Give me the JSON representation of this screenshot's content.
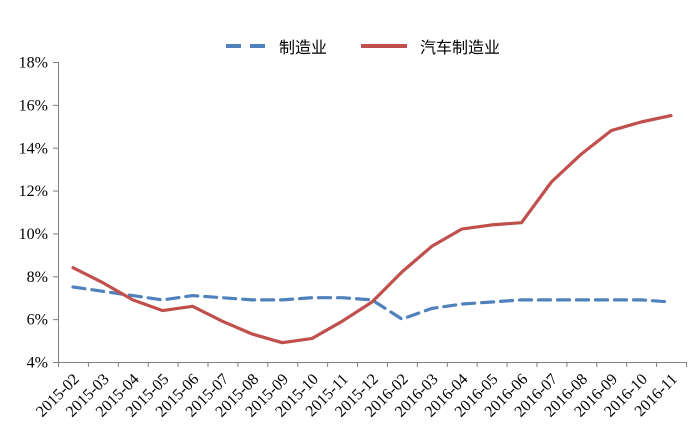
{
  "chart_data": {
    "type": "line",
    "title": "",
    "xlabel": "",
    "ylabel": "",
    "categories": [
      "2015-02",
      "2015-03",
      "2015-04",
      "2015-05",
      "2015-06",
      "2015-07",
      "2015-08",
      "2015-09",
      "2015-10",
      "2015-11",
      "2015-12",
      "2016-02",
      "2016-03",
      "2016-04",
      "2016-05",
      "2016-06",
      "2016-07",
      "2016-08",
      "2016-09",
      "2016-10",
      "2016-11"
    ],
    "series": [
      {
        "name": "制造业",
        "color": "#4F81BD",
        "line_style": "dashed",
        "values": [
          7.5,
          7.3,
          7.1,
          6.9,
          7.1,
          7.0,
          6.9,
          6.9,
          7.0,
          7.0,
          6.9,
          6.0,
          6.5,
          6.7,
          6.8,
          6.9,
          6.9,
          6.9,
          6.9,
          6.9,
          6.8
        ]
      },
      {
        "name": "汽车制造业",
        "color": "#C0504D",
        "line_style": "solid",
        "values": [
          8.4,
          7.7,
          6.9,
          6.4,
          6.6,
          5.9,
          5.3,
          4.9,
          5.1,
          5.9,
          6.8,
          8.2,
          9.4,
          10.2,
          10.4,
          10.5,
          12.4,
          13.7,
          14.8,
          15.2,
          15.5
        ]
      }
    ],
    "ylim": [
      4,
      18
    ],
    "ytick_step": 2,
    "y_ticks": [
      "4%",
      "6%",
      "8%",
      "10%",
      "12%",
      "14%",
      "16%",
      "18%"
    ],
    "grid": false,
    "legend_position": "top-center",
    "x_label_rotation": -45
  },
  "style": {
    "background": "#ffffff",
    "axis_color": "#808080",
    "text_color": "#000000"
  }
}
